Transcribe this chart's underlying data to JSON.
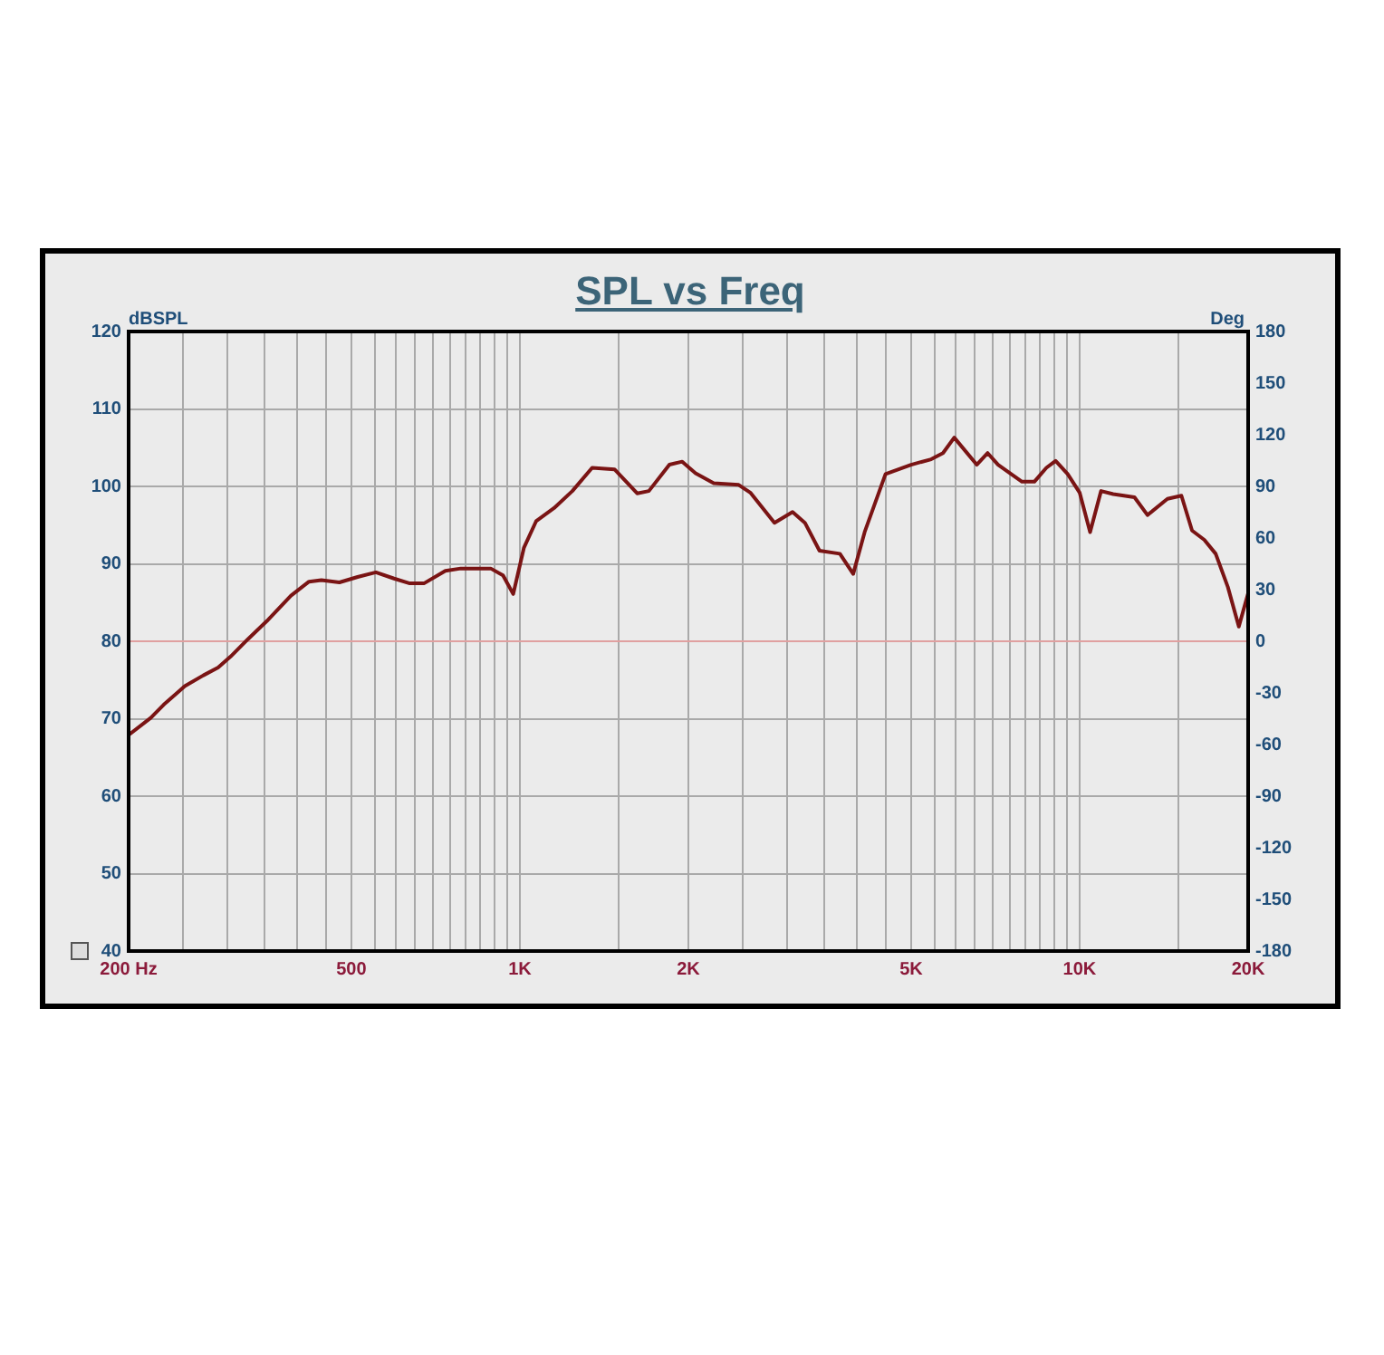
{
  "chart_data": {
    "type": "line",
    "title": "SPL vs Freq",
    "ylabel": "dBSPL",
    "y2label": "Deg",
    "log": "x",
    "grid": true,
    "legend": false,
    "marker": "none",
    "line_style": "solid",
    "xlim": [
      200,
      20000
    ],
    "xticks": [
      {
        "value": 200,
        "label": "200 Hz"
      },
      {
        "value": 250,
        "label": null
      },
      {
        "value": 300,
        "label": null
      },
      {
        "value": 350,
        "label": null
      },
      {
        "value": 400,
        "label": null
      },
      {
        "value": 450,
        "label": null
      },
      500,
      {
        "value": 550,
        "label": null
      },
      {
        "value": 600,
        "label": null
      },
      {
        "value": 650,
        "label": null
      },
      {
        "value": 700,
        "label": null
      },
      {
        "value": 750,
        "label": null
      },
      {
        "value": 800,
        "label": null
      },
      {
        "value": 850,
        "label": null
      },
      {
        "value": 900,
        "label": null
      },
      {
        "value": 950,
        "label": null
      },
      {
        "value": 1000,
        "label": "1K"
      },
      {
        "value": 1500,
        "label": null
      },
      {
        "value": 2000,
        "label": "2K"
      },
      {
        "value": 2500,
        "label": null
      },
      {
        "value": 3000,
        "label": null
      },
      {
        "value": 3500,
        "label": null
      },
      {
        "value": 4000,
        "label": null
      },
      {
        "value": 4500,
        "label": null
      },
      {
        "value": 5000,
        "label": "5K"
      },
      {
        "value": 5500,
        "label": null
      },
      {
        "value": 6000,
        "label": null
      },
      {
        "value": 6500,
        "label": null
      },
      {
        "value": 7000,
        "label": null
      },
      {
        "value": 7500,
        "label": null
      },
      {
        "value": 8000,
        "label": null
      },
      {
        "value": 8500,
        "label": null
      },
      {
        "value": 9000,
        "label": null
      },
      {
        "value": 9500,
        "label": null
      },
      {
        "value": 10000,
        "label": "10K"
      },
      {
        "value": 15000,
        "label": null
      },
      {
        "value": 20000,
        "label": "20K"
      }
    ],
    "ylim": [
      40,
      120
    ],
    "yticks": [
      40,
      50,
      60,
      70,
      80,
      90,
      100,
      110,
      120
    ],
    "y2lim": [
      -180,
      180
    ],
    "y2ticks": [
      -180,
      -150,
      -120,
      -90,
      -60,
      -30,
      0,
      30,
      60,
      90,
      120,
      150,
      180
    ],
    "ref_lines": [
      {
        "axis": "y",
        "value": 80,
        "color": "#e0a0a0"
      }
    ],
    "series": [
      {
        "color": "#7a1414",
        "x": [
          200,
          219,
          231,
          252,
          272,
          289,
          304,
          327,
          353,
          390,
          420,
          442,
          476,
          513,
          553,
          596,
          634,
          675,
          736,
          784,
          887,
          933,
          973,
          1017,
          1069,
          1151,
          1241,
          1346,
          1476,
          1620,
          1700,
          1850,
          1950,
          2060,
          2220,
          2460,
          2580,
          2850,
          3070,
          3230,
          3430,
          3730,
          3940,
          4130,
          4500,
          5000,
          5430,
          5700,
          5970,
          6550,
          6850,
          7150,
          7890,
          8300,
          8720,
          9060,
          9520,
          10000,
          10440,
          10920,
          11480,
          12530,
          13220,
          14350,
          15200,
          15880,
          16700,
          17500,
          18400,
          19250,
          20000
        ],
        "values": [
          67.9,
          70.1,
          71.8,
          74.2,
          75.6,
          76.6,
          78.0,
          80.3,
          82.6,
          85.9,
          87.7,
          87.9,
          87.6,
          88.3,
          88.9,
          88.1,
          87.5,
          87.5,
          89.1,
          89.4,
          89.4,
          88.5,
          86.1,
          92.1,
          95.5,
          97.2,
          99.4,
          102.4,
          102.2,
          99.1,
          99.4,
          102.8,
          103.2,
          101.7,
          100.4,
          100.2,
          99.2,
          95.3,
          96.7,
          95.3,
          91.7,
          91.3,
          88.7,
          94.1,
          101.6,
          102.8,
          103.5,
          104.3,
          106.3,
          102.8,
          104.3,
          102.8,
          100.6,
          100.6,
          102.4,
          103.3,
          101.6,
          99.2,
          94.1,
          99.4,
          99.0,
          98.6,
          96.3,
          98.4,
          98.8,
          94.3,
          93.1,
          91.3,
          87.0,
          81.9,
          86.2
        ]
      }
    ]
  }
}
